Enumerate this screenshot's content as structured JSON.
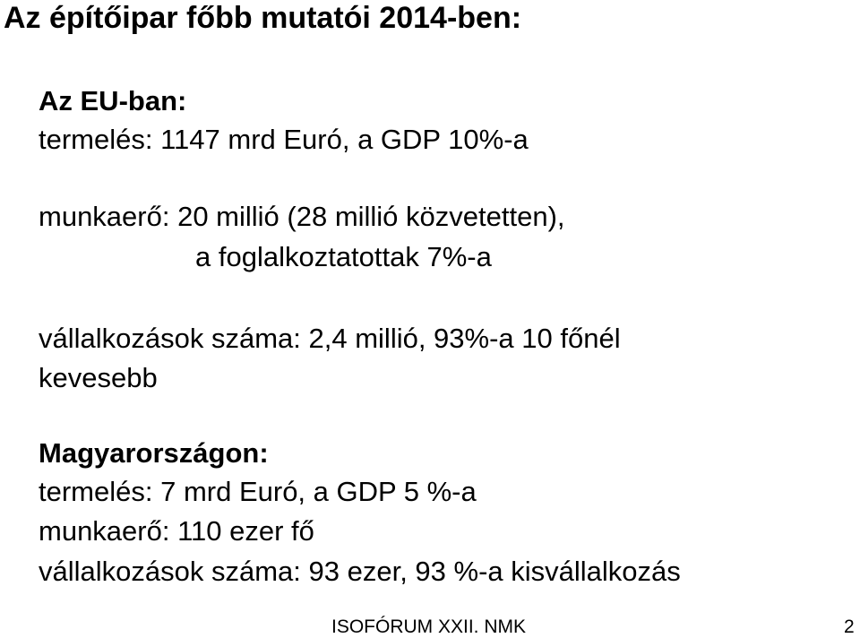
{
  "slide": {
    "title": "Az építőipar főbb mutatói 2014-ben:"
  },
  "eu": {
    "heading": "Az  EU-ban:",
    "production": "termelés: 1147 mrd Euró, a GDP 10%-a",
    "workforce_line1": "munkaerő: 20 millió (28 millió közvetetten),",
    "workforce_line2": "a foglalkoztatottak 7%-a",
    "companies_line1": "vállalkozások száma: 2,4 millió, 93%-a 10 főnél",
    "companies_line2": "kevesebb"
  },
  "hungary": {
    "heading": "Magyarországon:",
    "production": "termelés: 7 mrd Euró, a GDP 5 %-a",
    "workforce": "munkaerő: 110 ezer fő",
    "companies": "vállalkozások száma: 93 ezer, 93 %-a kisvállalkozás"
  },
  "footer": {
    "label": "ISOFÓRUM XXII. NMK",
    "page_number": "2"
  }
}
